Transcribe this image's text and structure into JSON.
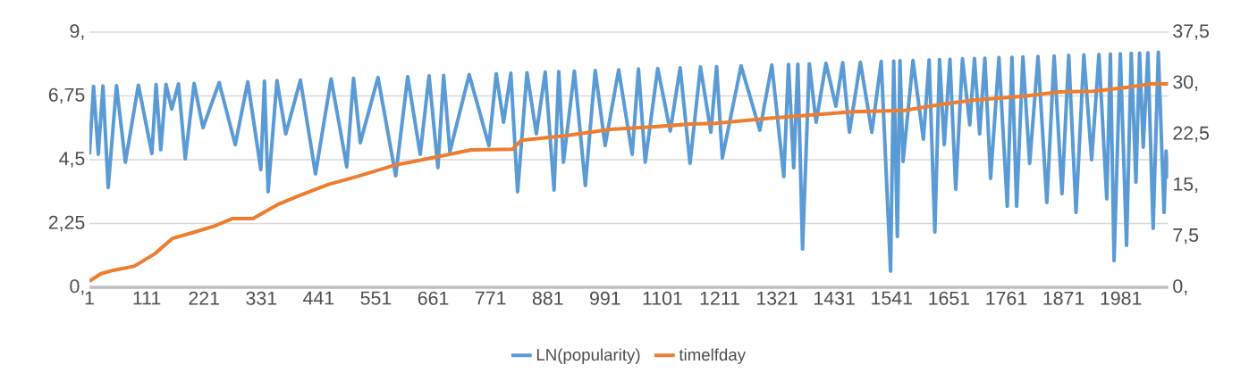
{
  "chart_data": {
    "type": "line",
    "xlim": [
      1,
      2072
    ],
    "xticks": [
      1,
      111,
      221,
      331,
      441,
      551,
      661,
      771,
      881,
      991,
      1101,
      1211,
      1321,
      1431,
      1541,
      1651,
      1761,
      1871,
      1981
    ],
    "ylim": [
      0,
      9
    ],
    "yticks": [
      {
        "value": 0,
        "label": "0,"
      },
      {
        "value": 2.25,
        "label": "2,25"
      },
      {
        "value": 4.5,
        "label": "4,5"
      },
      {
        "value": 6.75,
        "label": "6,75"
      },
      {
        "value": 9,
        "label": "9,"
      }
    ],
    "y2lim": [
      0,
      37.5
    ],
    "y2ticks": [
      {
        "value": 0,
        "label": "0,"
      },
      {
        "value": 7.5,
        "label": "7,5"
      },
      {
        "value": 15,
        "label": "15,"
      },
      {
        "value": 22.5,
        "label": "22,5"
      },
      {
        "value": 30,
        "label": "30,"
      },
      {
        "value": 37.5,
        "label": "37,5"
      }
    ],
    "grid": "y",
    "legend": "bottom",
    "series": [
      {
        "name": "LN(popularity)",
        "color": "#5b9bd5",
        "x": [
          1,
          9,
          18,
          27,
          37,
          53,
          70,
          95,
          121,
          129,
          138,
          148,
          159,
          172,
          185,
          202,
          219,
          250,
          281,
          305,
          330,
          337,
          344,
          361,
          378,
          406,
          435,
          465,
          495,
          508,
          521,
          555,
          589,
          612,
          636,
          653,
          670,
          681,
          693,
          730,
          768,
          782,
          796,
          810,
          823,
          841,
          859,
          876,
          893,
          902,
          911,
          932,
          953,
          972,
          991,
          1017,
          1043,
          1055,
          1068,
          1092,
          1116,
          1135,
          1154,
          1174,
          1194,
          1205,
          1216,
          1252,
          1288,
          1311,
          1334,
          1343,
          1353,
          1361,
          1370,
          1383,
          1396,
          1415,
          1434,
          1447,
          1460,
          1481,
          1503,
          1521,
          1539,
          1545,
          1552,
          1557,
          1563,
          1582,
          1602,
          1613,
          1624,
          1633,
          1642,
          1653,
          1664,
          1677,
          1691,
          1700,
          1710,
          1720,
          1731,
          1747,
          1763,
          1772,
          1781,
          1793,
          1806,
          1822,
          1839,
          1853,
          1868,
          1881,
          1895,
          1910,
          1925,
          1939,
          1954,
          1961,
          1968,
          1980,
          1992,
          2001,
          2010,
          2017,
          2024,
          2033,
          2043,
          2053,
          2064,
          2068,
          2072
        ],
        "values": [
          4.69,
          7.09,
          4.69,
          7.1,
          3.52,
          7.11,
          4.41,
          7.13,
          4.72,
          7.15,
          4.85,
          7.16,
          6.29,
          7.17,
          4.53,
          7.19,
          5.63,
          7.22,
          5.03,
          7.25,
          4.15,
          7.27,
          3.37,
          7.29,
          5.41,
          7.31,
          4.0,
          7.35,
          4.25,
          7.37,
          5.1,
          7.4,
          3.93,
          7.43,
          4.69,
          7.46,
          4.22,
          7.47,
          4.78,
          7.5,
          5.0,
          7.53,
          5.82,
          7.55,
          3.37,
          7.57,
          5.41,
          7.59,
          3.43,
          7.61,
          4.41,
          7.62,
          3.59,
          7.65,
          5.0,
          7.67,
          4.69,
          7.7,
          4.41,
          7.72,
          5.51,
          7.74,
          4.37,
          7.77,
          5.47,
          7.78,
          4.56,
          7.81,
          5.54,
          7.84,
          3.9,
          7.86,
          4.22,
          7.87,
          1.35,
          7.88,
          5.82,
          7.9,
          6.39,
          7.92,
          5.47,
          7.94,
          5.47,
          7.97,
          0.57,
          7.98,
          1.79,
          7.99,
          4.44,
          8.0,
          5.22,
          8.02,
          1.95,
          8.03,
          5.03,
          8.04,
          3.46,
          8.06,
          5.73,
          8.07,
          5.41,
          8.08,
          3.84,
          8.1,
          2.86,
          8.11,
          2.86,
          8.13,
          4.37,
          8.14,
          2.99,
          8.16,
          3.3,
          8.18,
          2.64,
          8.2,
          4.5,
          8.21,
          3.12,
          8.23,
          0.94,
          8.24,
          1.48,
          8.25,
          3.71,
          8.26,
          4.94,
          8.27,
          2.08,
          8.29,
          2.64,
          4.81,
          3.84
        ]
      },
      {
        "name": "timelfday",
        "color": "#ed7d31",
        "axis": "y2",
        "x": [
          1,
          23,
          47,
          87,
          126,
          161,
          202,
          241,
          276,
          315,
          361,
          401,
          459,
          516,
          590,
          658,
          734,
          813,
          830,
          916,
          1001,
          1087,
          1156,
          1202,
          1302,
          1466,
          1566,
          1631,
          1697,
          1796,
          1863,
          1928,
          1995,
          2040,
          2072
        ],
        "values": [
          0.9,
          2.0,
          2.5,
          3.1,
          4.9,
          7.2,
          8.1,
          9.0,
          10.1,
          10.1,
          12.1,
          13.4,
          15.1,
          16.3,
          18.0,
          19.0,
          20.2,
          20.3,
          21.6,
          22.3,
          23.2,
          23.6,
          24.0,
          24.1,
          24.8,
          25.8,
          26.0,
          26.8,
          27.5,
          28.1,
          28.7,
          28.8,
          29.4,
          29.9,
          29.9
        ]
      }
    ]
  }
}
